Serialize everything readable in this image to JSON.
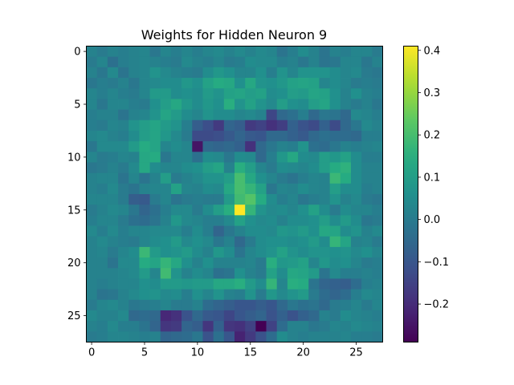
{
  "chart_data": {
    "type": "heatmap",
    "title": "Weights for Hidden Neuron 9",
    "xlabel": "",
    "ylabel": "",
    "rows": 28,
    "cols": 28,
    "x_ticks": [
      0,
      5,
      10,
      15,
      20,
      25
    ],
    "y_ticks": [
      0,
      5,
      10,
      15,
      20,
      25
    ],
    "xlim": [
      -0.5,
      27.5
    ],
    "ylim": [
      27.5,
      -0.5
    ],
    "y_axis_inverted": true,
    "colormap": "viridis",
    "vmin": -0.29,
    "vmax": 0.41,
    "colorbar_ticks": [
      -0.2,
      -0.1,
      0.0,
      0.1,
      0.2,
      0.3,
      0.4
    ],
    "colorbar_tick_labels": [
      "−0.2",
      "−0.1",
      "0.0",
      "0.1",
      "0.2",
      "0.3",
      "0.4"
    ],
    "grid": false,
    "values": [
      [
        0.02,
        0.0,
        0.02,
        0.01,
        0.02,
        0.03,
        -0.01,
        0.03,
        0.01,
        0.03,
        0.01,
        0.03,
        0.04,
        0.02,
        0.04,
        0.02,
        0.04,
        0.03,
        -0.02,
        0.01,
        0.05,
        0.02,
        -0.02,
        0.02,
        0.01,
        0.03,
        0.03,
        0.0
      ],
      [
        0.0,
        0.03,
        -0.03,
        0.01,
        0.02,
        0.03,
        0.02,
        0.01,
        0.0,
        0.04,
        0.02,
        0.01,
        0.03,
        0.0,
        0.01,
        0.05,
        0.04,
        0.04,
        0.01,
        0.02,
        -0.01,
        0.02,
        -0.02,
        -0.01,
        0.03,
        0.03,
        -0.01,
        0.02
      ],
      [
        0.02,
        -0.01,
        0.04,
        -0.02,
        0.02,
        0.03,
        0.07,
        0.04,
        0.02,
        0.01,
        0.0,
        0.05,
        0.08,
        0.06,
        0.03,
        0.03,
        0.06,
        0.01,
        0.07,
        0.03,
        0.07,
        0.07,
        0.07,
        0.05,
        0.03,
        0.04,
        0.0,
        -0.01
      ],
      [
        -0.01,
        0.01,
        0.0,
        0.02,
        -0.01,
        0.03,
        0.04,
        0.05,
        0.05,
        0.08,
        0.06,
        0.11,
        0.14,
        0.13,
        0.06,
        0.13,
        0.07,
        0.06,
        0.08,
        0.11,
        0.12,
        0.11,
        0.03,
        0.05,
        0.03,
        0.0,
        0.01,
        0.0
      ],
      [
        0.03,
        0.01,
        0.03,
        0.01,
        0.0,
        0.03,
        0.09,
        0.09,
        0.05,
        0.06,
        0.05,
        0.09,
        0.07,
        0.11,
        0.12,
        0.1,
        0.11,
        0.05,
        0.06,
        0.1,
        0.09,
        0.12,
        0.11,
        0.06,
        0.02,
        0.06,
        0.02,
        0.01
      ],
      [
        0.03,
        -0.01,
        0.03,
        0.03,
        0.01,
        0.0,
        0.06,
        0.1,
        0.13,
        0.08,
        0.05,
        0.08,
        0.06,
        0.15,
        0.07,
        0.11,
        0.07,
        0.04,
        0.1,
        0.06,
        0.05,
        0.1,
        0.12,
        0.06,
        0.02,
        0.0,
        0.02,
        -0.01
      ],
      [
        0.01,
        0.02,
        0.02,
        -0.02,
        0.02,
        0.03,
        0.07,
        0.12,
        0.09,
        0.05,
        0.03,
        0.07,
        0.05,
        0.05,
        0.03,
        0.04,
        0.02,
        -0.14,
        -0.05,
        -0.03,
        0.01,
        -0.05,
        -0.01,
        -0.02,
        -0.05,
        0.04,
        0.03,
        0.01
      ],
      [
        0.01,
        0.0,
        0.03,
        0.02,
        0.07,
        0.1,
        0.12,
        0.09,
        0.07,
        0.01,
        -0.08,
        -0.12,
        -0.17,
        -0.06,
        -0.08,
        -0.17,
        -0.15,
        -0.19,
        -0.16,
        -0.07,
        -0.11,
        -0.13,
        -0.07,
        -0.13,
        -0.05,
        -0.01,
        0.04,
        0.02
      ],
      [
        0.03,
        0.04,
        0.02,
        0.01,
        0.05,
        0.1,
        0.12,
        0.08,
        0.04,
        0.0,
        -0.13,
        -0.13,
        -0.12,
        -0.09,
        -0.06,
        -0.09,
        -0.1,
        -0.05,
        -0.05,
        -0.07,
        -0.09,
        -0.05,
        -0.03,
        -0.04,
        -0.04,
        -0.05,
        0.01,
        0.01
      ],
      [
        -0.01,
        0.04,
        0.04,
        0.04,
        0.09,
        0.14,
        0.12,
        0.03,
        0.05,
        0.03,
        -0.25,
        -0.05,
        -0.06,
        -0.05,
        -0.07,
        -0.19,
        -0.05,
        -0.01,
        0.02,
        0.01,
        0.07,
        -0.03,
        -0.04,
        -0.01,
        0.02,
        0.01,
        0.02,
        0.03
      ],
      [
        0.03,
        0.0,
        0.01,
        0.03,
        0.02,
        0.13,
        0.14,
        -0.01,
        0.03,
        0.03,
        -0.03,
        0.05,
        0.04,
        -0.01,
        0.05,
        0.04,
        -0.05,
        0.01,
        0.08,
        0.13,
        0.05,
        0.04,
        0.1,
        0.08,
        0.11,
        0.05,
        0.01,
        0.01
      ],
      [
        -0.01,
        0.0,
        0.02,
        0.0,
        0.04,
        0.13,
        0.05,
        0.03,
        0.03,
        0.05,
        0.06,
        0.1,
        0.12,
        0.02,
        0.15,
        0.1,
        0.03,
        0.0,
        0.05,
        0.04,
        0.03,
        0.05,
        0.1,
        0.14,
        0.16,
        0.05,
        0.02,
        0.02
      ],
      [
        0.02,
        0.03,
        0.03,
        -0.02,
        0.03,
        -0.02,
        0.02,
        0.1,
        0.0,
        0.02,
        0.04,
        0.07,
        0.07,
        0.1,
        0.2,
        0.13,
        0.06,
        0.03,
        0.0,
        -0.02,
        0.01,
        0.03,
        0.02,
        0.18,
        0.14,
        0.05,
        0.02,
        0.02
      ],
      [
        0.02,
        0.01,
        0.04,
        0.0,
        -0.02,
        0.02,
        0.03,
        0.03,
        0.11,
        0.03,
        0.02,
        0.05,
        0.04,
        0.13,
        0.2,
        0.17,
        0.11,
        -0.01,
        0.03,
        0.02,
        0.05,
        0.03,
        0.02,
        0.1,
        0.05,
        0.05,
        0.01,
        0.02
      ],
      [
        0.03,
        0.03,
        0.03,
        0.0,
        -0.08,
        -0.09,
        0.0,
        0.03,
        -0.02,
        0.0,
        0.01,
        -0.0,
        0.0,
        0.09,
        0.19,
        0.22,
        0.14,
        0.05,
        0.01,
        0.03,
        -0.01,
        0.01,
        0.02,
        0.07,
        0.02,
        0.04,
        0.0,
        -0.01
      ],
      [
        0.0,
        0.02,
        0.04,
        0.03,
        -0.01,
        -0.06,
        -0.03,
        0.01,
        0.04,
        0.04,
        0.0,
        0.05,
        0.1,
        0.15,
        0.41,
        0.17,
        0.07,
        0.04,
        0.05,
        0.03,
        0.06,
        0.11,
        0.05,
        0.0,
        0.05,
        0.03,
        0.03,
        0.01
      ],
      [
        0.01,
        0.03,
        0.03,
        0.0,
        -0.03,
        -0.04,
        -0.02,
        0.02,
        0.08,
        0.04,
        0.03,
        0.01,
        0.01,
        0.04,
        0.11,
        0.06,
        0.04,
        0.05,
        0.02,
        0.05,
        0.05,
        0.06,
        0.1,
        0.05,
        0.09,
        0.05,
        -0.01,
        0.0
      ],
      [
        0.04,
        0.01,
        0.04,
        0.01,
        0.03,
        0.03,
        0.04,
        0.04,
        0.04,
        0.01,
        0.05,
        0.01,
        -0.06,
        -0.01,
        0.02,
        0.05,
        0.05,
        0.04,
        0.08,
        0.07,
        0.09,
        0.06,
        0.13,
        0.12,
        0.05,
        0.07,
        0.02,
        0.04
      ],
      [
        0.02,
        0.04,
        0.02,
        0.01,
        0.0,
        0.03,
        0.05,
        0.06,
        0.09,
        0.04,
        0.06,
        0.04,
        -0.01,
        0.02,
        -0.05,
        0.0,
        0.05,
        0.06,
        0.06,
        0.05,
        0.06,
        0.09,
        0.05,
        0.17,
        0.12,
        0.02,
        0.03,
        0.0
      ],
      [
        0.02,
        0.03,
        0.0,
        0.03,
        0.05,
        0.18,
        0.09,
        0.06,
        0.07,
        0.09,
        0.05,
        0.02,
        0.08,
        0.05,
        -0.02,
        0.03,
        0.05,
        0.07,
        0.11,
        0.07,
        0.05,
        0.07,
        0.07,
        0.06,
        0.07,
        0.04,
        0.06,
        0.03
      ],
      [
        0.02,
        0.02,
        -0.02,
        0.04,
        0.04,
        0.14,
        0.12,
        0.17,
        0.13,
        0.06,
        0.02,
        0.06,
        0.02,
        0.02,
        0.02,
        0.03,
        -0.0,
        0.15,
        0.08,
        0.09,
        0.11,
        0.03,
        0.08,
        0.05,
        0.06,
        0.03,
        -0.0,
        0.01
      ],
      [
        0.02,
        0.02,
        0.02,
        0.03,
        0.04,
        0.09,
        0.03,
        0.19,
        0.07,
        0.02,
        0.05,
        0.03,
        -0.03,
        -0.02,
        0.06,
        0.02,
        0.0,
        0.11,
        0.05,
        0.13,
        0.12,
        0.09,
        -0.02,
        0.04,
        0.01,
        0.01,
        0.02,
        0.01
      ],
      [
        0.02,
        0.01,
        0.02,
        0.03,
        0.03,
        0.06,
        0.05,
        0.09,
        0.09,
        0.08,
        0.09,
        0.09,
        0.13,
        0.13,
        0.15,
        0.09,
        0.05,
        0.17,
        0.03,
        0.15,
        0.14,
        -0.02,
        -0.06,
        -0.07,
        -0.08,
        -0.04,
        0.01,
        0.02
      ],
      [
        0.02,
        -0.02,
        -0.01,
        0.02,
        0.04,
        0.06,
        0.07,
        0.04,
        0.05,
        0.01,
        0.06,
        0.03,
        0.07,
        0.02,
        0.01,
        0.07,
        0.0,
        0.08,
        0.04,
        0.07,
        0.09,
        0.0,
        -0.04,
        -0.06,
        -0.04,
        0.01,
        0.04,
        0.03
      ],
      [
        0.0,
        0.03,
        0.04,
        0.02,
        -0.01,
        -0.0,
        0.01,
        0.03,
        0.0,
        0.0,
        0.02,
        -0.04,
        -0.06,
        -0.08,
        -0.1,
        -0.1,
        -0.08,
        -0.1,
        -0.05,
        -0.01,
        -0.03,
        -0.02,
        -0.05,
        0.0,
        0.01,
        0.03,
        0.0,
        0.03
      ],
      [
        0.04,
        0.02,
        0.02,
        0.04,
        -0.05,
        -0.04,
        -0.05,
        -0.21,
        -0.19,
        -0.11,
        -0.05,
        -0.09,
        -0.1,
        -0.14,
        -0.1,
        -0.08,
        -0.06,
        -0.11,
        -0.07,
        -0.11,
        -0.07,
        -0.05,
        0.02,
        0.0,
        0.05,
        0.03,
        0.02,
        0.01
      ],
      [
        0.02,
        0.01,
        0.04,
        0.01,
        0.01,
        -0.02,
        -0.06,
        -0.18,
        -0.17,
        -0.06,
        -0.08,
        -0.18,
        -0.07,
        -0.18,
        -0.19,
        -0.15,
        -0.29,
        -0.15,
        -0.04,
        0.02,
        0.02,
        -0.01,
        0.0,
        0.03,
        0.02,
        0.04,
        0.03,
        0.02
      ],
      [
        0.0,
        0.01,
        0.03,
        0.03,
        0.02,
        0.01,
        0.02,
        -0.06,
        -0.05,
        -0.04,
        -0.01,
        -0.11,
        -0.03,
        -0.1,
        -0.22,
        -0.17,
        -0.11,
        -0.04,
        0.05,
        0.02,
        0.01,
        0.02,
        0.02,
        0.02,
        0.03,
        0.01,
        0.01,
        0.0
      ]
    ]
  }
}
